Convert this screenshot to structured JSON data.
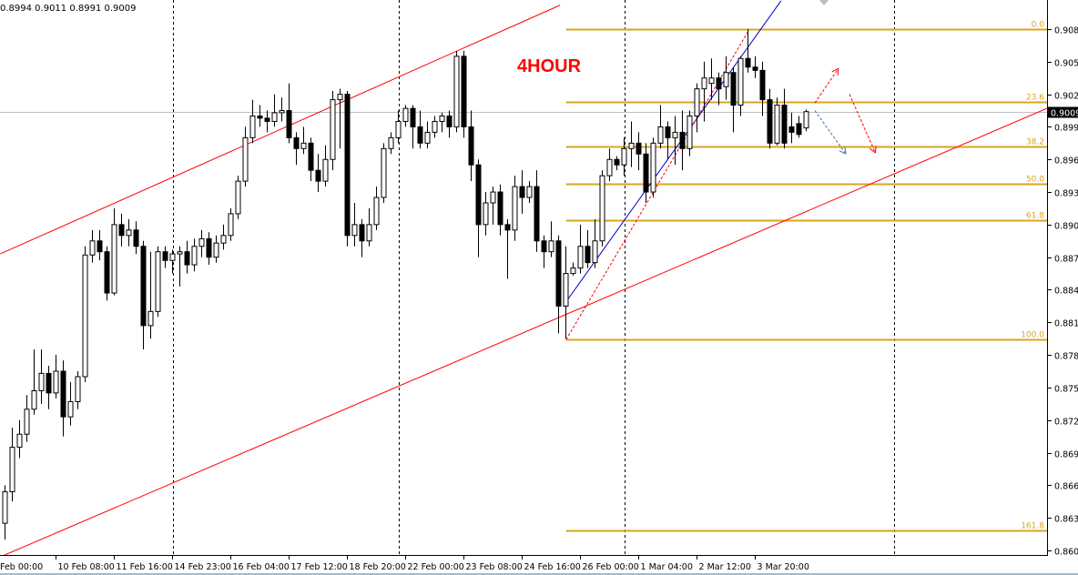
{
  "header": {
    "ohlc_text": "0.8994 0.9011 0.8991 0.9009"
  },
  "annotation": {
    "timeframe_label": "4HOUR"
  },
  "colors": {
    "bull_fill": "#ffffff",
    "bear_fill": "#000000",
    "channel": "#ff0000",
    "fib": "#DAA520",
    "trend_blue": "#0000cc",
    "projection_red": "#ff0000",
    "projection_blue": "#4a6fa5",
    "current_price_line": "#c0c0c0"
  },
  "chart_data": {
    "type": "candlestick",
    "timeframe": "4HOUR",
    "ylim": [
      0.8595,
      0.911
    ],
    "grid": false,
    "y_ticks": [
      "0.9085",
      "0.9055",
      "0.9025",
      "0.8995",
      "0.8965",
      "0.8935",
      "0.8905",
      "0.8875",
      "0.8845",
      "0.8815",
      "0.8785",
      "0.8755",
      "0.8725",
      "0.8695",
      "0.8665",
      "0.8635",
      "0.8605"
    ],
    "x_ticks": [
      {
        "label": "Feb 00:00",
        "bar": -1
      },
      {
        "label": "10 Feb 08:00",
        "bar": 7
      },
      {
        "label": "11 Feb 16:00",
        "bar": 15
      },
      {
        "label": "14 Feb 23:00",
        "bar": 23
      },
      {
        "label": "16 Feb 04:00",
        "bar": 31
      },
      {
        "label": "17 Feb 12:00",
        "bar": 39
      },
      {
        "label": "18 Feb 20:00",
        "bar": 47
      },
      {
        "label": "22 Feb 00:00",
        "bar": 55
      },
      {
        "label": "23 Feb 08:00",
        "bar": 63
      },
      {
        "label": "24 Feb 16:00",
        "bar": 71
      },
      {
        "label": "26 Feb 00:00",
        "bar": 79
      },
      {
        "label": "1 Mar 04:00",
        "bar": 87
      },
      {
        "label": "2 Mar 12:00",
        "bar": 95
      },
      {
        "label": "3 Mar 20:00",
        "bar": 103
      }
    ],
    "period_separators_bar": [
      23.1,
      54.1,
      85.1,
      122.1
    ],
    "current_price": "0.9009",
    "ohlc": [
      [
        0.863,
        0.8665,
        0.8615,
        0.8659
      ],
      [
        0.8659,
        0.8718,
        0.865,
        0.87
      ],
      [
        0.87,
        0.8725,
        0.869,
        0.8712
      ],
      [
        0.8712,
        0.8748,
        0.8705,
        0.8735
      ],
      [
        0.8735,
        0.879,
        0.873,
        0.8752
      ],
      [
        0.8752,
        0.879,
        0.874,
        0.8768
      ],
      [
        0.8768,
        0.8775,
        0.8735,
        0.875
      ],
      [
        0.875,
        0.8785,
        0.8745,
        0.877
      ],
      [
        0.877,
        0.878,
        0.871,
        0.8728
      ],
      [
        0.8728,
        0.876,
        0.872,
        0.8742
      ],
      [
        0.8742,
        0.877,
        0.8735,
        0.8765
      ],
      [
        0.8765,
        0.8885,
        0.876,
        0.8877
      ],
      [
        0.8877,
        0.89,
        0.887,
        0.889
      ],
      [
        0.889,
        0.89,
        0.8872,
        0.888
      ],
      [
        0.888,
        0.8885,
        0.8835,
        0.8842
      ],
      [
        0.8842,
        0.892,
        0.884,
        0.8905
      ],
      [
        0.8905,
        0.8915,
        0.8885,
        0.8895
      ],
      [
        0.8895,
        0.891,
        0.8885,
        0.89
      ],
      [
        0.89,
        0.8908,
        0.8878,
        0.8885
      ],
      [
        0.8885,
        0.889,
        0.879,
        0.8812
      ],
      [
        0.8812,
        0.888,
        0.88,
        0.8825
      ],
      [
        0.8825,
        0.8885,
        0.882,
        0.888
      ],
      [
        0.888,
        0.8885,
        0.8865,
        0.8872
      ],
      [
        0.8872,
        0.8882,
        0.886,
        0.8878
      ],
      [
        0.8878,
        0.8885,
        0.8848,
        0.888
      ],
      [
        0.888,
        0.889,
        0.886,
        0.8868
      ],
      [
        0.8868,
        0.8892,
        0.8862,
        0.8885
      ],
      [
        0.8885,
        0.89,
        0.8875,
        0.8892
      ],
      [
        0.8892,
        0.8898,
        0.8868,
        0.8875
      ],
      [
        0.8875,
        0.8895,
        0.887,
        0.8888
      ],
      [
        0.8888,
        0.8905,
        0.8882,
        0.8895
      ],
      [
        0.8895,
        0.892,
        0.889,
        0.8915
      ],
      [
        0.8915,
        0.895,
        0.891,
        0.8945
      ],
      [
        0.8945,
        0.8995,
        0.894,
        0.8985
      ],
      [
        0.8985,
        0.902,
        0.898,
        0.9005
      ],
      [
        0.9005,
        0.9015,
        0.8995,
        0.9003
      ],
      [
        0.9003,
        0.901,
        0.899,
        0.9
      ],
      [
        0.9,
        0.9025,
        0.8995,
        0.9008
      ],
      [
        0.9008,
        0.9022,
        0.9,
        0.901
      ],
      [
        0.901,
        0.9035,
        0.898,
        0.8985
      ],
      [
        0.8985,
        0.899,
        0.896,
        0.8975
      ],
      [
        0.8975,
        0.8995,
        0.897,
        0.898
      ],
      [
        0.898,
        0.8985,
        0.8945,
        0.8955
      ],
      [
        0.8955,
        0.897,
        0.8935,
        0.8945
      ],
      [
        0.8945,
        0.8978,
        0.894,
        0.8965
      ],
      [
        0.8965,
        0.9028,
        0.8955,
        0.902
      ],
      [
        0.902,
        0.903,
        0.8975,
        0.9025
      ],
      [
        0.9025,
        0.9028,
        0.8885,
        0.8895
      ],
      [
        0.8895,
        0.8925,
        0.8885,
        0.8905
      ],
      [
        0.8905,
        0.891,
        0.8875,
        0.889
      ],
      [
        0.889,
        0.892,
        0.8885,
        0.8905
      ],
      [
        0.8905,
        0.894,
        0.89,
        0.893
      ],
      [
        0.893,
        0.898,
        0.8925,
        0.8975
      ],
      [
        0.8975,
        0.899,
        0.897,
        0.8985
      ],
      [
        0.8985,
        0.901,
        0.898,
        0.9
      ],
      [
        0.9,
        0.9015,
        0.8995,
        0.9012
      ],
      [
        0.9012,
        0.9015,
        0.8975,
        0.8995
      ],
      [
        0.8995,
        0.901,
        0.8975,
        0.898
      ],
      [
        0.898,
        0.9,
        0.8975,
        0.899
      ],
      [
        0.899,
        0.9005,
        0.8985,
        0.9
      ],
      [
        0.9,
        0.9008,
        0.899,
        0.9005
      ],
      [
        0.9005,
        0.901,
        0.8985,
        0.8995
      ],
      [
        0.8995,
        0.9065,
        0.899,
        0.906
      ],
      [
        0.906,
        0.9065,
        0.8985,
        0.8995
      ],
      [
        0.8995,
        0.901,
        0.8945,
        0.896
      ],
      [
        0.896,
        0.8965,
        0.8875,
        0.8905
      ],
      [
        0.8905,
        0.8935,
        0.8895,
        0.8925
      ],
      [
        0.8925,
        0.894,
        0.8905,
        0.8935
      ],
      [
        0.8935,
        0.8942,
        0.8895,
        0.8905
      ],
      [
        0.8905,
        0.891,
        0.8855,
        0.89
      ],
      [
        0.89,
        0.895,
        0.889,
        0.894
      ],
      [
        0.894,
        0.8955,
        0.8915,
        0.893
      ],
      [
        0.893,
        0.8945,
        0.8925,
        0.894
      ],
      [
        0.894,
        0.8955,
        0.888,
        0.889
      ],
      [
        0.889,
        0.8895,
        0.8865,
        0.888
      ],
      [
        0.888,
        0.8908,
        0.8875,
        0.889
      ],
      [
        0.889,
        0.8895,
        0.8805,
        0.883
      ],
      [
        0.883,
        0.8885,
        0.88,
        0.886
      ],
      [
        0.886,
        0.887,
        0.8858,
        0.8865
      ],
      [
        0.8865,
        0.8905,
        0.886,
        0.8885
      ],
      [
        0.8885,
        0.89,
        0.8865,
        0.887
      ],
      [
        0.887,
        0.891,
        0.8865,
        0.889
      ],
      [
        0.889,
        0.8955,
        0.8885,
        0.895
      ],
      [
        0.895,
        0.8975,
        0.8945,
        0.8965
      ],
      [
        0.8965,
        0.8968,
        0.8955,
        0.896
      ],
      [
        0.896,
        0.8985,
        0.895,
        0.8975
      ],
      [
        0.8975,
        0.9,
        0.8958,
        0.898
      ],
      [
        0.898,
        0.899,
        0.8955,
        0.897
      ],
      [
        0.897,
        0.898,
        0.8925,
        0.8935
      ],
      [
        0.8935,
        0.8985,
        0.893,
        0.898
      ],
      [
        0.898,
        0.9015,
        0.8975,
        0.8995
      ],
      [
        0.8995,
        0.9,
        0.8965,
        0.8985
      ],
      [
        0.8985,
        0.9005,
        0.896,
        0.899
      ],
      [
        0.899,
        0.901,
        0.8955,
        0.8975
      ],
      [
        0.8975,
        0.901,
        0.8968,
        0.9005
      ],
      [
        0.9005,
        0.9035,
        0.899,
        0.903
      ],
      [
        0.903,
        0.9055,
        0.9,
        0.904
      ],
      [
        0.9035,
        0.9058,
        0.902,
        0.904
      ],
      [
        0.904,
        0.9045,
        0.9015,
        0.903
      ],
      [
        0.9032,
        0.906,
        0.902,
        0.9045
      ],
      [
        0.9045,
        0.905,
        0.899,
        0.9015
      ],
      [
        0.9015,
        0.906,
        0.9005,
        0.9058
      ],
      [
        0.9058,
        0.9085,
        0.9045,
        0.905
      ],
      [
        0.905,
        0.906,
        0.904,
        0.9047
      ],
      [
        0.9047,
        0.9055,
        0.9005,
        0.902
      ],
      [
        0.902,
        0.903,
        0.8975,
        0.898
      ],
      [
        0.898,
        0.9022,
        0.8978,
        0.9015
      ],
      [
        0.9015,
        0.903,
        0.8975,
        0.898
      ],
      [
        0.8995,
        0.9008,
        0.898,
        0.899
      ],
      [
        0.8998,
        0.9005,
        0.8985,
        0.8988
      ],
      [
        0.8994,
        0.9011,
        0.8991,
        0.9009
      ]
    ],
    "fibonacci": {
      "start_bar": 77.1,
      "levels": [
        {
          "label": "0.0",
          "price": 0.9085
        },
        {
          "label": "23.6",
          "price": 0.9018
        },
        {
          "label": "38.2",
          "price": 0.8977
        },
        {
          "label": "50.0",
          "price": 0.8943
        },
        {
          "label": "61.8",
          "price": 0.8909
        },
        {
          "label": "100.0",
          "price": 0.8799
        },
        {
          "label": "161.8",
          "price": 0.8623
        }
      ]
    },
    "drawings": [
      {
        "name": "channel-upper",
        "style": "solid",
        "color": "#ff0000",
        "points": [
          [
            -0.6,
            0.8878
          ],
          [
            76.25,
            0.9107
          ]
        ]
      },
      {
        "name": "channel-lower",
        "style": "solid",
        "color": "#ff0000",
        "points": [
          [
            -0.6,
            0.8599
          ],
          [
            143.1,
            0.9012
          ]
        ]
      },
      {
        "name": "trend-blue",
        "style": "solid",
        "color": "#0000cc",
        "points": [
          [
            77.1,
            0.8834
          ],
          [
            106.6,
            0.9111
          ]
        ]
      },
      {
        "name": "trend-red-dashed",
        "style": "dashed",
        "color": "#ff0000",
        "points": [
          [
            77.1,
            0.8799
          ],
          [
            102.1,
            0.9083
          ]
        ]
      },
      {
        "name": "projection-up-arrow",
        "style": "dashed-arrow",
        "color": "#ff0000",
        "points": [
          [
            111.25,
            0.9017
          ],
          [
            114.4,
            0.9048
          ]
        ]
      },
      {
        "name": "projection-down-arrow",
        "style": "dashed-arrow",
        "color": "#ff0000",
        "points": [
          [
            116.0,
            0.9025
          ],
          [
            119.5,
            0.8972
          ]
        ]
      },
      {
        "name": "projection-blue-arrow",
        "style": "dashed-arrow",
        "color": "#4a6fa5",
        "points": [
          [
            111.25,
            0.901
          ],
          [
            115.4,
            0.8971
          ]
        ]
      }
    ]
  }
}
